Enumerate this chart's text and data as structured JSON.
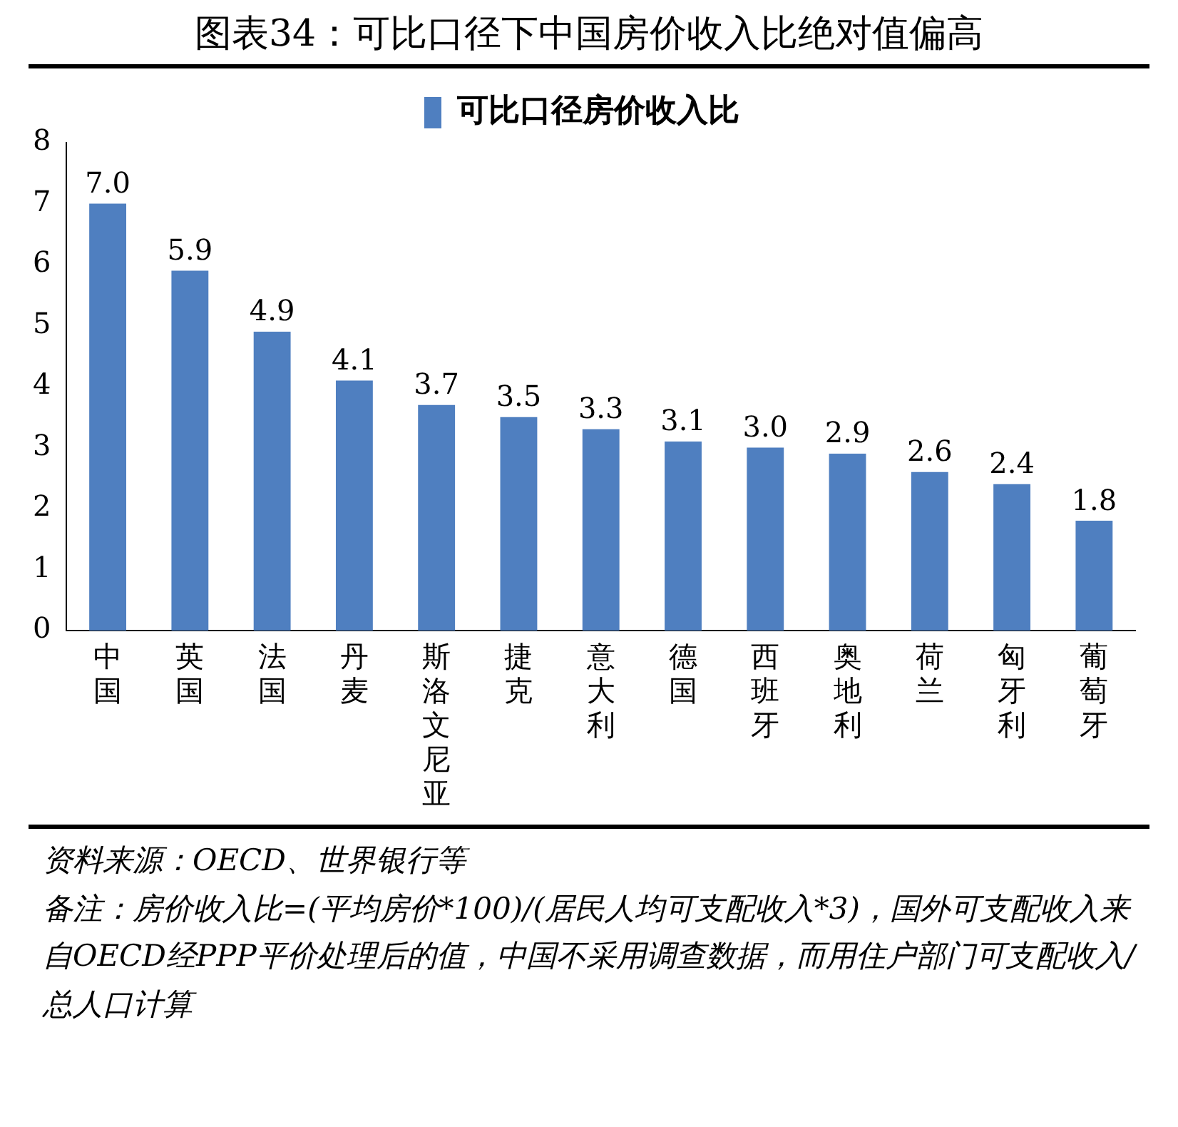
{
  "chart_data": {
    "type": "bar",
    "title": "图表34：可比口径下中国房价收入比绝对值偏高",
    "categories": [
      "中国",
      "英国",
      "法国",
      "丹麦",
      "斯洛文尼亚",
      "捷克",
      "意大利",
      "德国",
      "西班牙",
      "奥地利",
      "荷兰",
      "匈牙利",
      "葡萄牙"
    ],
    "series": [
      {
        "name": "可比口径房价收入比",
        "color": "#4f7fc0",
        "values": [
          7.0,
          5.9,
          4.9,
          4.1,
          3.7,
          3.5,
          3.3,
          3.1,
          3.0,
          2.9,
          2.6,
          2.4,
          1.8
        ]
      }
    ],
    "value_labels": [
      "7.0",
      "5.9",
      "4.9",
      "4.1",
      "3.7",
      "3.5",
      "3.3",
      "3.1",
      "3.0",
      "2.9",
      "2.6",
      "2.4",
      "1.8"
    ],
    "ylim": [
      0,
      8
    ],
    "yticks": [
      0,
      1,
      2,
      3,
      4,
      5,
      6,
      7,
      8
    ],
    "grid": false,
    "legend": "top",
    "annotations": [
      "资料来源：OECD、世界银行等",
      "备注：房价收入比=(平均房价*100)/(居民人均可支配收入*3)，国外可支配收入来自OECD经PPP平价处理后的值，中国不采用调查数据，而用住户部门可支配收入/总人口计算"
    ]
  }
}
